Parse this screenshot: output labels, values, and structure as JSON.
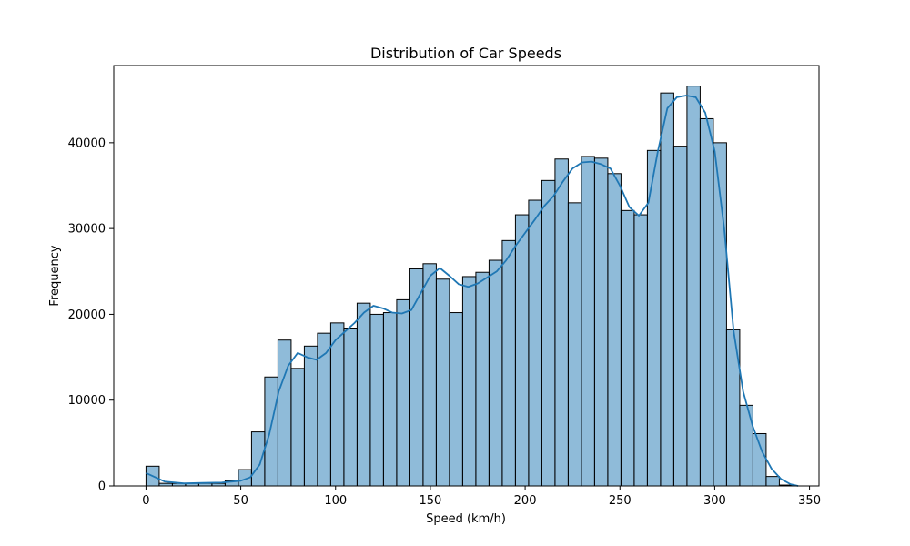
{
  "chart_data": {
    "type": "bar",
    "title": "Distribution of Car Speeds",
    "xlabel": "Speed (km/h)",
    "ylabel": "Frequency",
    "xlim": [
      -17,
      355
    ],
    "ylim": [
      0,
      49000
    ],
    "x_ticks": [
      0,
      50,
      100,
      150,
      200,
      250,
      300,
      350
    ],
    "y_ticks": [
      0,
      10000,
      20000,
      30000,
      40000
    ],
    "grid": false,
    "legend": "none",
    "colors": {
      "bar_fill": "#1f77b4",
      "bar_fill_opacity": 0.5,
      "bar_edge": "#000000",
      "kde_line": "#1f77b4",
      "background": "#ffffff",
      "axes": "#000000"
    },
    "histogram": {
      "bins_start": 0,
      "bin_width": 6.96,
      "values": [
        2300,
        300,
        300,
        300,
        300,
        300,
        600,
        1900,
        6300,
        12700,
        17000,
        13700,
        16300,
        17800,
        19000,
        18400,
        21300,
        20000,
        20200,
        21700,
        25300,
        25900,
        24100,
        20200,
        24400,
        24900,
        26300,
        28600,
        31600,
        33300,
        35600,
        38100,
        33000,
        38400,
        38200,
        36400,
        32100,
        31600,
        39100,
        45800,
        39600,
        46600,
        42800,
        40000,
        18200,
        9400,
        6100,
        1100,
        100
      ]
    },
    "kde": {
      "x": [
        0,
        5,
        10,
        20,
        30,
        40,
        50,
        55,
        60,
        65,
        70,
        75,
        80,
        85,
        90,
        95,
        100,
        105,
        110,
        115,
        120,
        125,
        130,
        135,
        140,
        145,
        150,
        155,
        160,
        165,
        170,
        175,
        180,
        185,
        190,
        195,
        200,
        205,
        210,
        215,
        220,
        225,
        230,
        235,
        240,
        245,
        250,
        255,
        260,
        265,
        270,
        275,
        280,
        285,
        290,
        295,
        300,
        305,
        310,
        315,
        320,
        325,
        330,
        335,
        340,
        344
      ],
      "y": [
        1500,
        1000,
        500,
        300,
        350,
        400,
        600,
        1000,
        2500,
        6000,
        11000,
        14000,
        15500,
        15000,
        14700,
        15500,
        17000,
        18000,
        19000,
        20200,
        21000,
        20700,
        20200,
        20100,
        20500,
        22500,
        24500,
        25400,
        24500,
        23500,
        23200,
        23600,
        24300,
        25000,
        26300,
        28000,
        29500,
        31000,
        32600,
        33800,
        35500,
        37000,
        37700,
        37800,
        37500,
        37000,
        35000,
        32500,
        31500,
        33000,
        39000,
        44000,
        45300,
        45500,
        45300,
        43500,
        39000,
        30000,
        18000,
        11000,
        7000,
        4000,
        2000,
        800,
        200,
        0
      ]
    }
  }
}
